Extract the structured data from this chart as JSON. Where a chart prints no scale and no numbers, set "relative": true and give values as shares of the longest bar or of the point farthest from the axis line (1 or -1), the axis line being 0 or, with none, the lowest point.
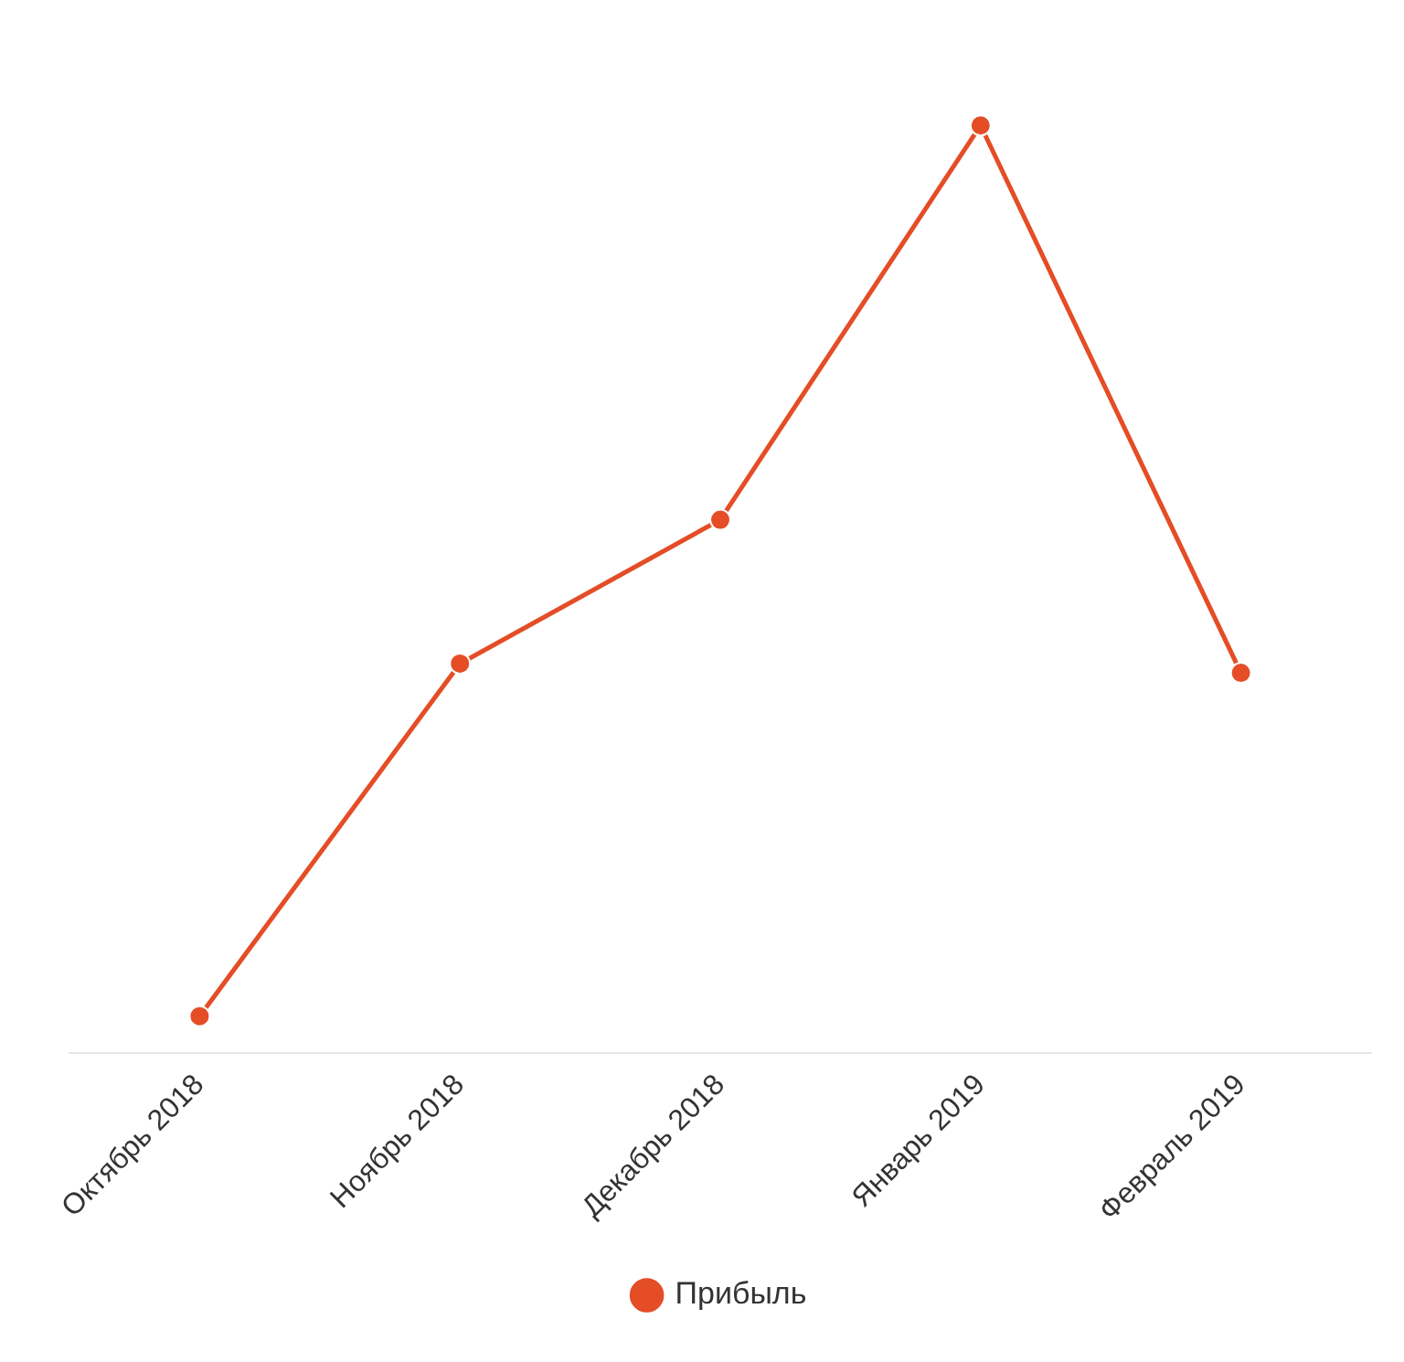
{
  "chart_data": {
    "type": "line",
    "relative": true,
    "categories": [
      "Октябрь 2018",
      "Ноябрь 2018",
      "Декабрь 2018",
      "Январь 2019",
      "Февраль 2019"
    ],
    "series": [
      {
        "name": "Прибыль",
        "color": "#e44d26",
        "values": [
          0.04,
          0.42,
          0.575,
          1,
          0.41
        ]
      }
    ],
    "grid": false,
    "legend": "bottom",
    "marker": "circle",
    "line_style": "solid"
  }
}
